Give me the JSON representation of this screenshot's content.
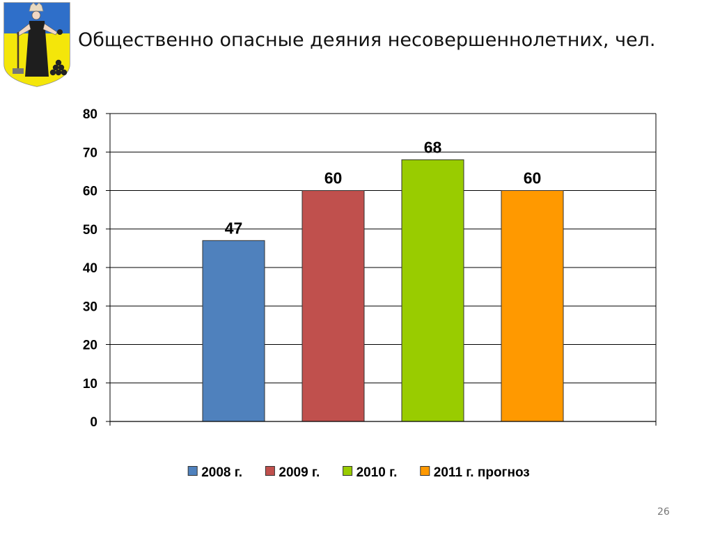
{
  "slide": {
    "title": "Общественно опасные деяния несовершеннолетних, чел.",
    "page_number": "26"
  },
  "chart_data": {
    "type": "bar",
    "title": "Общественно опасные деяния несовершеннолетних, чел.",
    "categories": [
      "2008 г.",
      "2009 г.",
      "2010 г.",
      "2011 г. прогноз"
    ],
    "values": [
      47,
      60,
      68,
      60
    ],
    "data_labels": [
      "47",
      "60",
      "68",
      "60"
    ],
    "colors": [
      "#4f81bd",
      "#c0504d",
      "#99cc00",
      "#ff9900"
    ],
    "ylim": [
      0,
      80
    ],
    "yticks": [
      0,
      10,
      20,
      30,
      40,
      50,
      60,
      70,
      80
    ],
    "grid": true,
    "legend_position": "bottom"
  }
}
